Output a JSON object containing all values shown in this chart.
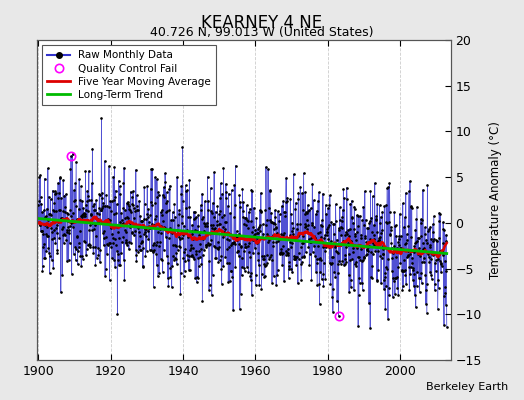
{
  "title": "KEARNEY 4 NE",
  "subtitle": "40.726 N, 99.013 W (United States)",
  "ylabel": "Temperature Anomaly (°C)",
  "credit": "Berkeley Earth",
  "xlim": [
    1899.5,
    2014
  ],
  "ylim": [
    -15,
    20
  ],
  "yticks": [
    -15,
    -10,
    -5,
    0,
    5,
    10,
    15,
    20
  ],
  "xticks": [
    1900,
    1920,
    1940,
    1960,
    1980,
    2000
  ],
  "bg_color": "#e8e8e8",
  "plot_bg_color": "#ffffff",
  "raw_color": "#3333cc",
  "ma_color": "#dd0000",
  "trend_color": "#00bb00",
  "qc_color": "#ff00ff",
  "seed": 42,
  "n_months": 1356,
  "start_year": 1900,
  "qc_fail_index_1": 108,
  "qc_fail_value_1": 7.3,
  "qc_fail_index_2": 996,
  "qc_fail_value_2": -10.2,
  "noise_std": 3.0,
  "trend_slope": -0.003,
  "trend_intercept": 0.5
}
